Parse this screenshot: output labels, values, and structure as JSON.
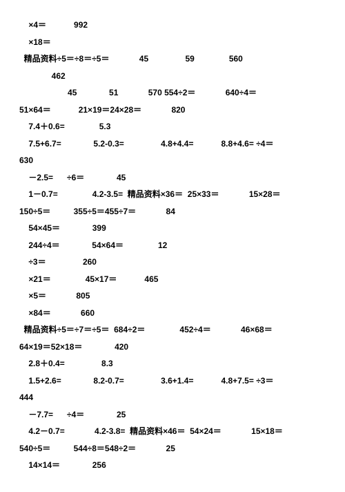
{
  "lines": [
    "    ×4＝            992",
    "    ×18＝",
    "  精品资料÷5＝÷8＝÷5＝             45                59               560",
    "              462",
    "                     45              51             570 554÷2＝             640÷4＝",
    "51×64＝            21×19＝24×28＝             820",
    "    7.4＋0.6=               5.3",
    "    7.5+6.7=              5.2-0.3=                4.8+4.4=            8.8+4.6= ÷4＝",
    "630",
    "    －2.5=      ÷6＝              45",
    "    1－0.7=               4.2-3.5=  精品资料×36＝  25×33＝             15×28＝",
    "150÷5＝          355÷5＝455÷7＝             84",
    "    54×45＝              399",
    "    244÷4＝              54×64＝               12",
    "    ÷3＝                260",
    "    ×21＝               45×17＝            465",
    "    ×5＝             805",
    "    ×84＝             660",
    "  精品资料÷5＝÷7＝÷5＝  684÷2＝               452÷4＝             46×68＝",
    "64×19＝52×18＝              420",
    "    2.8＋0.4=                8.3",
    "    1.5+2.6=              8.2-0.7=                3.6+1.4=            4.8+7.5= ÷3＝",
    "444",
    "    －7.7=      ÷4＝              25",
    "    4.2－0.7=             4.2-3.8=  精品资料×46＝  54×24＝             15×18＝",
    "540÷5＝          544÷8＝548÷2＝             25",
    "    14×14＝              256"
  ]
}
